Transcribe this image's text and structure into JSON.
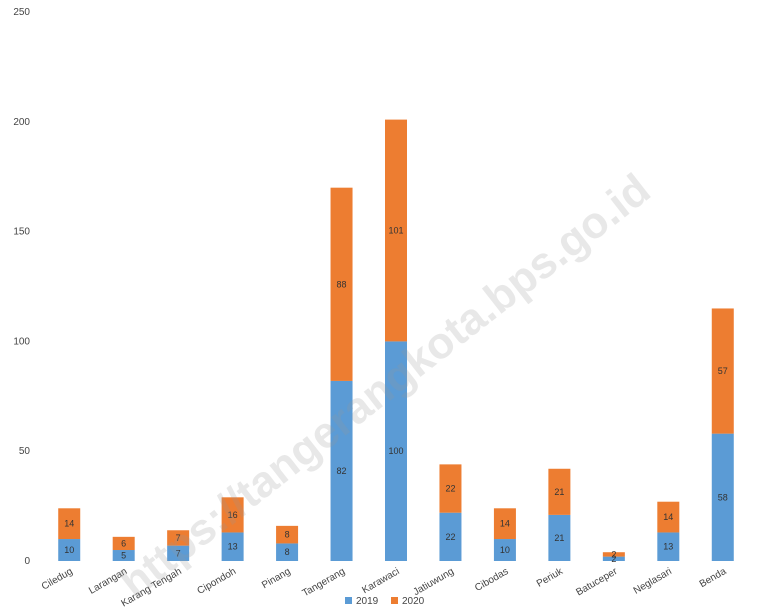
{
  "chart_data": {
    "type": "bar",
    "stacked": true,
    "categories": [
      "Ciledug",
      "Larangan",
      "Karang Tengah",
      "Cipondoh",
      "Pinang",
      "Tangerang",
      "Karawaci",
      "Jatiuwung",
      "Cibodas",
      "Periuk",
      "Batuceper",
      "Neglasari",
      "Benda"
    ],
    "series": [
      {
        "name": "2019",
        "color": "#5b9bd5",
        "values": [
          10,
          5,
          7,
          13,
          8,
          82,
          100,
          22,
          10,
          21,
          2,
          13,
          58
        ]
      },
      {
        "name": "2020",
        "color": "#ed7d31",
        "values": [
          14,
          6,
          7,
          16,
          8,
          88,
          101,
          22,
          14,
          21,
          2,
          14,
          57
        ]
      }
    ],
    "ylim": [
      0,
      250
    ],
    "yticks": [
      0,
      50,
      100,
      150,
      200,
      250
    ],
    "legend_position": "bottom",
    "grid": false,
    "watermark": "https://tangerangkota.bps.go.id"
  }
}
